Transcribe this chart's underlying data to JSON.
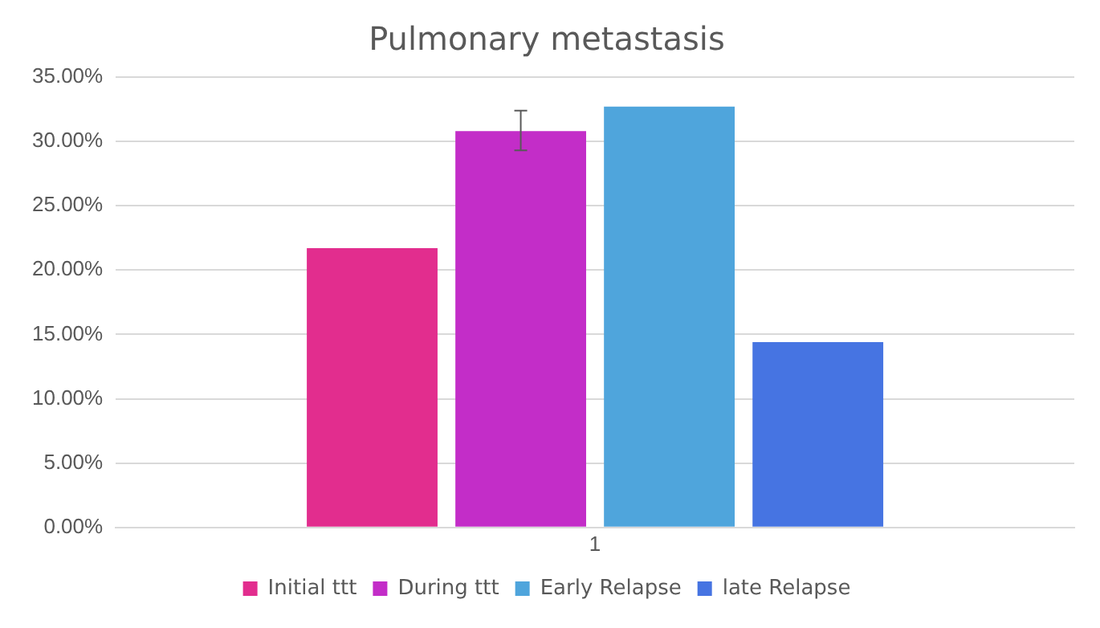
{
  "chart_data": {
    "type": "bar",
    "title": "Pulmonary metastasis",
    "categories": [
      "1"
    ],
    "series": [
      {
        "name": "Initial ttt",
        "color": "#e22d8e",
        "values": [
          21.7
        ]
      },
      {
        "name": "During ttt",
        "color": "#c32dc8",
        "values": [
          30.8
        ],
        "errors": [
          [
            29.3,
            32.4
          ]
        ]
      },
      {
        "name": "Early Relapse",
        "color": "#4fa5dc",
        "values": [
          32.7
        ]
      },
      {
        "name": "late Relapse",
        "color": "#4674e2",
        "values": [
          14.4
        ]
      }
    ],
    "ylim": [
      0,
      35
    ],
    "yticks": [
      {
        "value": 0,
        "label": "0.00%"
      },
      {
        "value": 5,
        "label": "5.00%"
      },
      {
        "value": 10,
        "label": "10.00%"
      },
      {
        "value": 15,
        "label": "15.00%"
      },
      {
        "value": 20,
        "label": "20.00%"
      },
      {
        "value": 25,
        "label": "25.00%"
      },
      {
        "value": 30,
        "label": "30.00%"
      },
      {
        "value": 35,
        "label": "35.00%"
      }
    ],
    "grid": "y",
    "legend": "bottom"
  }
}
